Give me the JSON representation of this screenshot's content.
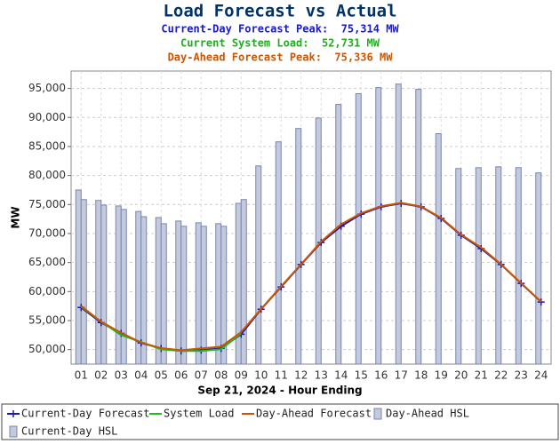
{
  "chart_data": {
    "type": "combo",
    "title": "Load Forecast vs Actual",
    "subtitles": [
      {
        "text": "Current-Day Forecast Peak:  75,314 MW",
        "color": "#1a1acc"
      },
      {
        "text": "Current System Load:  52,731 MW",
        "color": "#22aa22"
      },
      {
        "text": "Day-Ahead Forecast Peak:  75,336 MW",
        "color": "#cc5500"
      }
    ],
    "xlabel": "Sep 21, 2024 - Hour Ending",
    "ylabel": "MW",
    "categories": [
      "01",
      "02",
      "03",
      "04",
      "05",
      "06",
      "07",
      "08",
      "09",
      "10",
      "11",
      "12",
      "13",
      "14",
      "15",
      "16",
      "17",
      "18",
      "19",
      "20",
      "21",
      "22",
      "23",
      "24"
    ],
    "ylim": [
      47500,
      98000
    ],
    "yticks": [
      {
        "value": 50000,
        "label": "50,000"
      },
      {
        "value": 55000,
        "label": "55,000"
      },
      {
        "value": 60000,
        "label": "60,000"
      },
      {
        "value": 65000,
        "label": "65,000"
      },
      {
        "value": 70000,
        "label": "70,000"
      },
      {
        "value": 75000,
        "label": "75,000"
      },
      {
        "value": 80000,
        "label": "80,000"
      },
      {
        "value": 85000,
        "label": "85,000"
      },
      {
        "value": 90000,
        "label": "90,000"
      },
      {
        "value": 95000,
        "label": "95,000"
      }
    ],
    "grid": true,
    "series": [
      {
        "name": "Current-Day Forecast",
        "type": "line",
        "marker": "+",
        "color": "#1a1aaa",
        "values": [
          57250,
          54650,
          52800,
          51150,
          50200,
          49750,
          49900,
          50200,
          52650,
          56950,
          60800,
          64650,
          68450,
          71250,
          73350,
          74600,
          75200,
          74600,
          72600,
          69700,
          67400,
          64650,
          61400,
          58200
        ]
      },
      {
        "name": "System Load",
        "type": "line",
        "color": "#22bb22",
        "values": [
          57400,
          54800,
          52500,
          51300,
          50050,
          49750,
          49750,
          50050,
          52800,
          null,
          null,
          null,
          null,
          null,
          null,
          null,
          null,
          null,
          null,
          null,
          null,
          null,
          null,
          null
        ]
      },
      {
        "name": "Day-Ahead Forecast",
        "type": "line",
        "color": "#cc5500",
        "values": [
          57500,
          54800,
          52900,
          51200,
          50250,
          49900,
          50200,
          50500,
          53000,
          57000,
          60900,
          64700,
          68600,
          71600,
          73500,
          74700,
          75300,
          74650,
          72700,
          69800,
          67600,
          64700,
          61450,
          58250
        ]
      },
      {
        "name": "Day-Ahead HSL",
        "type": "bar",
        "color": "#c3cadf",
        "values": [
          77500,
          75700,
          74750,
          73800,
          72750,
          72150,
          71850,
          71700,
          75200,
          81650,
          85800,
          88100,
          89900,
          92250,
          94100,
          95150,
          95750,
          94850,
          87200,
          81200,
          81350,
          81500,
          81350,
          80450
        ]
      },
      {
        "name": "Current-Day HSL",
        "type": "bar",
        "color": "#c3cadf",
        "values": [
          75850,
          74900,
          74150,
          72900,
          71700,
          71250,
          71250,
          71250,
          75850,
          null,
          null,
          null,
          null,
          null,
          null,
          null,
          null,
          null,
          null,
          null,
          null,
          null,
          null,
          null
        ]
      }
    ]
  }
}
